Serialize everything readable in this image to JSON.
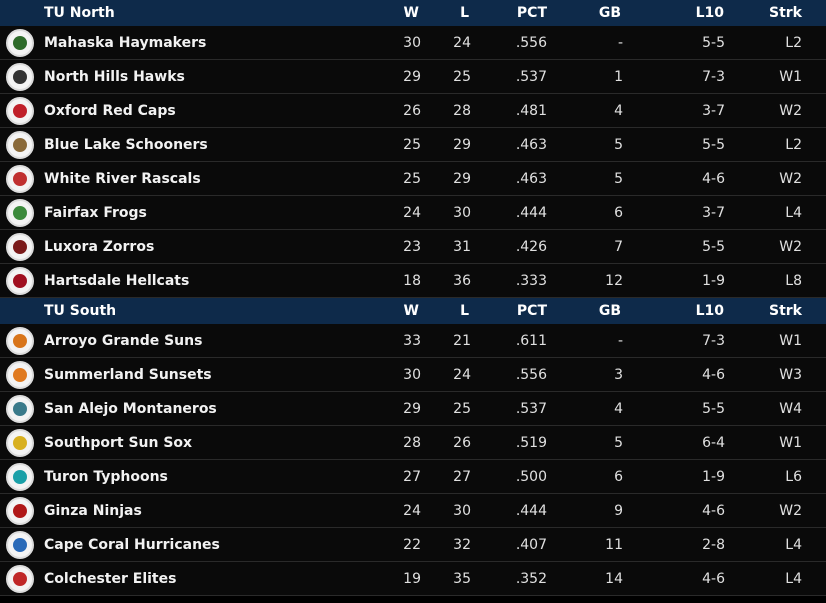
{
  "colors": {
    "header_bg": "#0e2a4a",
    "row_bg": "#0a0a0a",
    "text": "#e8e8e8"
  },
  "divisions": [
    {
      "name": "TU North",
      "columns": [
        "W",
        "L",
        "PCT",
        "GB",
        "L10",
        "Strk"
      ],
      "teams": [
        {
          "name": "Mahaska Haymakers",
          "w": "30",
          "l": "24",
          "pct": ".556",
          "gb": "-",
          "l10": "5-5",
          "strk": "L2",
          "logo_color": "#2e6b2a",
          "logo_icon": "haymakers-logo-icon"
        },
        {
          "name": "North Hills Hawks",
          "w": "29",
          "l": "25",
          "pct": ".537",
          "gb": "1",
          "l10": "7-3",
          "strk": "W1",
          "logo_color": "#333333",
          "logo_icon": "hawks-logo-icon"
        },
        {
          "name": "Oxford Red Caps",
          "w": "26",
          "l": "28",
          "pct": ".481",
          "gb": "4",
          "l10": "3-7",
          "strk": "W2",
          "logo_color": "#c0202a",
          "logo_icon": "red-caps-logo-icon"
        },
        {
          "name": "Blue Lake Schooners",
          "w": "25",
          "l": "29",
          "pct": ".463",
          "gb": "5",
          "l10": "5-5",
          "strk": "L2",
          "logo_color": "#8a6a3a",
          "logo_icon": "schooners-logo-icon"
        },
        {
          "name": "White River Rascals",
          "w": "25",
          "l": "29",
          "pct": ".463",
          "gb": "5",
          "l10": "4-6",
          "strk": "W2",
          "logo_color": "#c03030",
          "logo_icon": "rascals-logo-icon"
        },
        {
          "name": "Fairfax Frogs",
          "w": "24",
          "l": "30",
          "pct": ".444",
          "gb": "6",
          "l10": "3-7",
          "strk": "L4",
          "logo_color": "#3c8a3c",
          "logo_icon": "frogs-logo-icon"
        },
        {
          "name": "Luxora Zorros",
          "w": "23",
          "l": "31",
          "pct": ".426",
          "gb": "7",
          "l10": "5-5",
          "strk": "W2",
          "logo_color": "#7a1a1a",
          "logo_icon": "zorros-logo-icon"
        },
        {
          "name": "Hartsdale Hellcats",
          "w": "18",
          "l": "36",
          "pct": ".333",
          "gb": "12",
          "l10": "1-9",
          "strk": "L8",
          "logo_color": "#a01020",
          "logo_icon": "hellcats-logo-icon"
        }
      ]
    },
    {
      "name": "TU South",
      "columns": [
        "W",
        "L",
        "PCT",
        "GB",
        "L10",
        "Strk"
      ],
      "teams": [
        {
          "name": "Arroyo Grande Suns",
          "w": "33",
          "l": "21",
          "pct": ".611",
          "gb": "-",
          "l10": "7-3",
          "strk": "W1",
          "logo_color": "#d8751a",
          "logo_icon": "suns-logo-icon"
        },
        {
          "name": "Summerland Sunsets",
          "w": "30",
          "l": "24",
          "pct": ".556",
          "gb": "3",
          "l10": "4-6",
          "strk": "W3",
          "logo_color": "#e07a20",
          "logo_icon": "sunsets-logo-icon"
        },
        {
          "name": "San Alejo Montaneros",
          "w": "29",
          "l": "25",
          "pct": ".537",
          "gb": "4",
          "l10": "5-5",
          "strk": "W4",
          "logo_color": "#3a7a8a",
          "logo_icon": "montaneros-logo-icon"
        },
        {
          "name": "Southport Sun Sox",
          "w": "28",
          "l": "26",
          "pct": ".519",
          "gb": "5",
          "l10": "6-4",
          "strk": "W1",
          "logo_color": "#d8b020",
          "logo_icon": "sun-sox-logo-icon"
        },
        {
          "name": "Turon Typhoons",
          "w": "27",
          "l": "27",
          "pct": ".500",
          "gb": "6",
          "l10": "1-9",
          "strk": "L6",
          "logo_color": "#1aa0a8",
          "logo_icon": "typhoons-logo-icon"
        },
        {
          "name": "Ginza Ninjas",
          "w": "24",
          "l": "30",
          "pct": ".444",
          "gb": "9",
          "l10": "4-6",
          "strk": "W2",
          "logo_color": "#b01818",
          "logo_icon": "ninjas-logo-icon"
        },
        {
          "name": "Cape Coral Hurricanes",
          "w": "22",
          "l": "32",
          "pct": ".407",
          "gb": "11",
          "l10": "2-8",
          "strk": "L4",
          "logo_color": "#2a6ab8",
          "logo_icon": "hurricanes-logo-icon"
        },
        {
          "name": "Colchester Elites",
          "w": "19",
          "l": "35",
          "pct": ".352",
          "gb": "14",
          "l10": "4-6",
          "strk": "L4",
          "logo_color": "#c02828",
          "logo_icon": "elites-logo-icon"
        }
      ]
    }
  ]
}
